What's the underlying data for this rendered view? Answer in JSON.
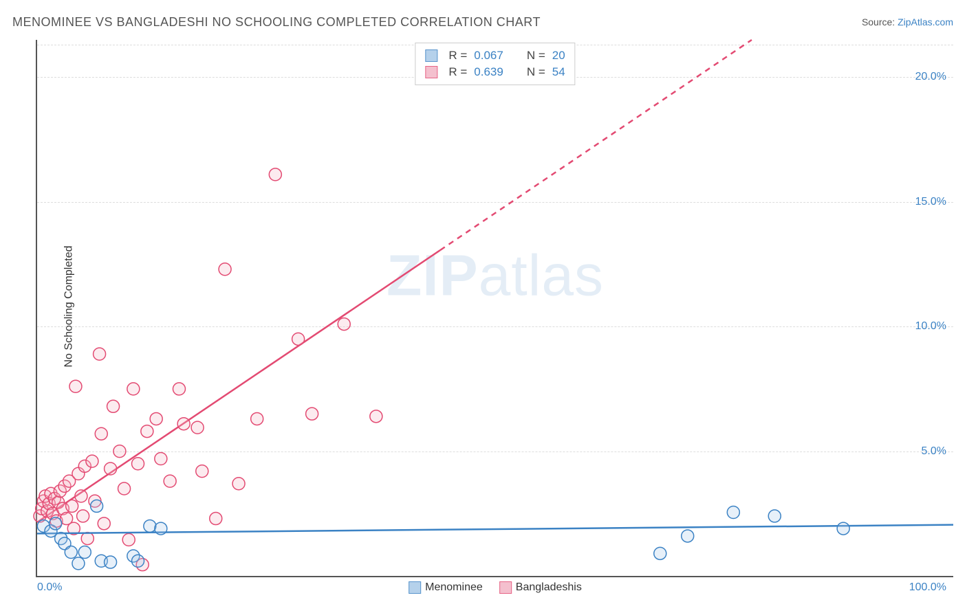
{
  "title": "MENOMINEE VS BANGLADESHI NO SCHOOLING COMPLETED CORRELATION CHART",
  "source_label": "Source: ",
  "source_value": "ZipAtlas.com",
  "y_axis_label": "No Schooling Completed",
  "watermark_bold": "ZIP",
  "watermark_light": "atlas",
  "chart": {
    "type": "scatter",
    "background_color": "#ffffff",
    "grid_color": "#dddddd",
    "axis_color": "#555555",
    "tick_color": "#3b82c4",
    "text_color": "#333333",
    "xlim": [
      0,
      100
    ],
    "ylim": [
      0,
      21.5
    ],
    "ytick_step": 5,
    "yticks": [
      {
        "v": 5,
        "label": "5.0%"
      },
      {
        "v": 10,
        "label": "10.0%"
      },
      {
        "v": 15,
        "label": "15.0%"
      },
      {
        "v": 20,
        "label": "20.0%"
      }
    ],
    "xtick_left": "0.0%",
    "xtick_right": "100.0%",
    "marker_radius": 9,
    "marker_stroke_width": 1.5,
    "marker_fill_opacity": 0.28,
    "trend_line_width": 2.5,
    "series": [
      {
        "name": "Menominee",
        "color": "#3b82c4",
        "fill": "#a9c9e8",
        "R": "0.067",
        "N": "20",
        "trend": {
          "x1": 0,
          "y1": 1.7,
          "x2": 100,
          "y2": 2.05,
          "dash_from_x": 200
        },
        "points": [
          [
            0.7,
            2.0
          ],
          [
            1.5,
            1.8
          ],
          [
            2.0,
            2.1
          ],
          [
            2.6,
            1.5
          ],
          [
            3.0,
            1.3
          ],
          [
            3.7,
            0.95
          ],
          [
            4.5,
            0.5
          ],
          [
            5.2,
            0.95
          ],
          [
            6.5,
            2.8
          ],
          [
            7.0,
            0.6
          ],
          [
            8.0,
            0.55
          ],
          [
            10.5,
            0.8
          ],
          [
            11.0,
            0.6
          ],
          [
            12.3,
            2.0
          ],
          [
            13.5,
            1.9
          ],
          [
            68.0,
            0.9
          ],
          [
            71.0,
            1.6
          ],
          [
            76.0,
            2.55
          ],
          [
            80.5,
            2.4
          ],
          [
            88.0,
            1.9
          ]
        ]
      },
      {
        "name": "Bangladeshis",
        "color": "#e34a72",
        "fill": "#f3b6c6",
        "R": "0.639",
        "N": "54",
        "trend": {
          "x1": 0,
          "y1": 2.15,
          "x2": 78,
          "y2": 21.5,
          "dash_from_x": 44
        },
        "points": [
          [
            0.3,
            2.4
          ],
          [
            0.5,
            2.7
          ],
          [
            0.7,
            3.0
          ],
          [
            0.9,
            3.2
          ],
          [
            1.1,
            2.6
          ],
          [
            1.3,
            2.9
          ],
          [
            1.5,
            3.3
          ],
          [
            1.7,
            2.5
          ],
          [
            1.9,
            3.1
          ],
          [
            2.1,
            2.2
          ],
          [
            2.3,
            2.95
          ],
          [
            2.5,
            3.4
          ],
          [
            2.8,
            2.7
          ],
          [
            3.0,
            3.6
          ],
          [
            3.2,
            2.3
          ],
          [
            3.5,
            3.8
          ],
          [
            3.8,
            2.8
          ],
          [
            4.0,
            1.9
          ],
          [
            4.2,
            7.6
          ],
          [
            4.5,
            4.1
          ],
          [
            4.8,
            3.2
          ],
          [
            5.0,
            2.4
          ],
          [
            5.2,
            4.4
          ],
          [
            5.5,
            1.5
          ],
          [
            6.0,
            4.6
          ],
          [
            6.3,
            3.0
          ],
          [
            6.8,
            8.9
          ],
          [
            7.0,
            5.7
          ],
          [
            7.3,
            2.1
          ],
          [
            8.0,
            4.3
          ],
          [
            8.3,
            6.8
          ],
          [
            9.0,
            5.0
          ],
          [
            9.5,
            3.5
          ],
          [
            10.0,
            1.45
          ],
          [
            10.5,
            7.5
          ],
          [
            11.0,
            4.5
          ],
          [
            11.5,
            0.45
          ],
          [
            12.0,
            5.8
          ],
          [
            13.0,
            6.3
          ],
          [
            13.5,
            4.7
          ],
          [
            14.5,
            3.8
          ],
          [
            15.5,
            7.5
          ],
          [
            16.0,
            6.1
          ],
          [
            17.5,
            5.95
          ],
          [
            18.0,
            4.2
          ],
          [
            19.5,
            2.3
          ],
          [
            20.5,
            12.3
          ],
          [
            22.0,
            3.7
          ],
          [
            24.0,
            6.3
          ],
          [
            26.0,
            16.1
          ],
          [
            28.5,
            9.5
          ],
          [
            30.0,
            6.5
          ],
          [
            33.5,
            10.1
          ],
          [
            37.0,
            6.4
          ]
        ]
      }
    ],
    "stats_labels": {
      "R": "R =",
      "N": "N ="
    },
    "bottom_legend_labels": [
      "Menominee",
      "Bangladeshis"
    ]
  }
}
